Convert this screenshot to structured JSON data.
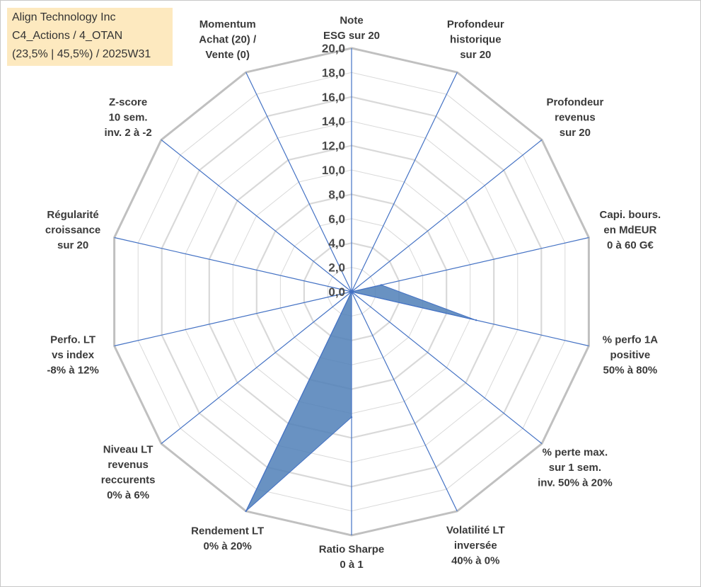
{
  "info_box": {
    "line1": "Align Technology Inc",
    "line2": "C4_Actions / 4_OTAN",
    "line3": "(23,5% | 45,5%) / 2025W31"
  },
  "chart_data": {
    "type": "radar",
    "title": "",
    "rmin": 0,
    "rmax": 20,
    "tick_step": 2,
    "ticks": [
      "0,0",
      "2,0",
      "4,0",
      "6,0",
      "8,0",
      "10,0",
      "12,0",
      "14,0",
      "16,0",
      "18,0",
      "20,0"
    ],
    "grid": true,
    "legend": "none",
    "axes": [
      [
        "Note",
        "ESG sur 20"
      ],
      [
        "Profondeur",
        "historique",
        "sur 20"
      ],
      [
        "Profondeur",
        "revenus",
        "sur 20"
      ],
      [
        "Capi. bours.",
        "en MdEUR",
        "0 à 60 G€"
      ],
      [
        "% perfo 1A",
        "positive",
        "50% à 80%"
      ],
      [
        "% perte max.",
        "sur 1 sem.",
        "inv. 50% à 20%"
      ],
      [
        "Volatilité LT",
        "inversée",
        "40% à 0%"
      ],
      [
        "Ratio Sharpe",
        "0 à 1"
      ],
      [
        "Rendement LT",
        "0% à 20%"
      ],
      [
        "Niveau LT",
        "revenus",
        "reccurents",
        "0% à 6%"
      ],
      [
        "Perfo. LT",
        "vs index",
        "-8% à 12%"
      ],
      [
        "Régularité",
        "croissance",
        "sur 20"
      ],
      [
        "Z-score",
        "10 sem.",
        "inv. 2 à -2"
      ],
      [
        "Momentum",
        "Achat (20) /",
        "Vente (0)"
      ]
    ],
    "series": [
      {
        "values": [
          0,
          0,
          0,
          2.5,
          10.5,
          0,
          0,
          10.3,
          20,
          0,
          0,
          0,
          0,
          0
        ]
      }
    ],
    "colors": {
      "fill": "#4f7fb7",
      "spoke": "#4472c4",
      "grid_outer": "#c0c0c0",
      "grid_inner": "#d9d9d9"
    }
  }
}
